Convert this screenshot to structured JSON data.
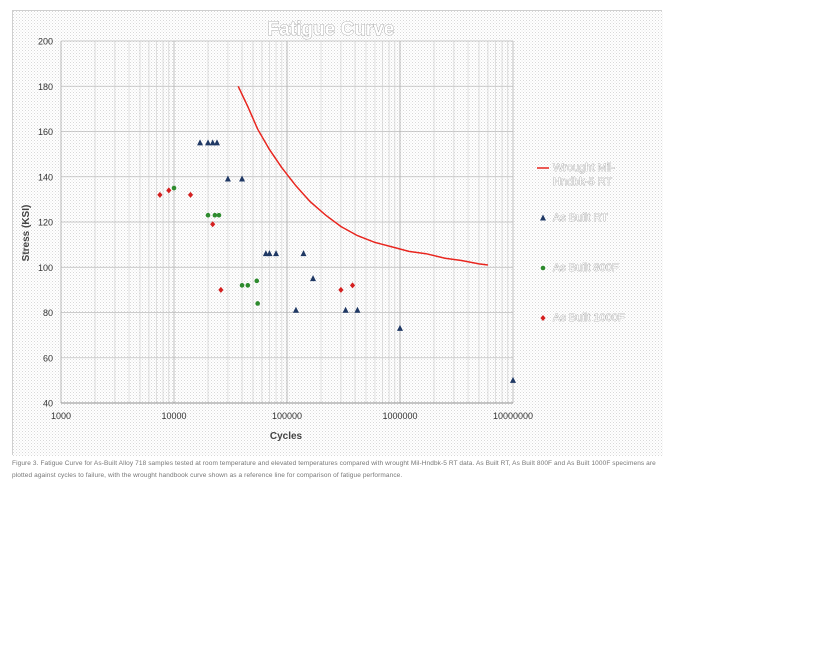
{
  "chart_data": {
    "type": "scatter",
    "title": "Fatigue Curve",
    "xlabel": "Cycles",
    "ylabel": "Stress (KSI)",
    "x_scale": "log",
    "xlim": [
      1000,
      10000000
    ],
    "ylim": [
      40,
      200
    ],
    "x_ticks": [
      "1000",
      "10000",
      "100000",
      "1000000",
      "10000000"
    ],
    "y_ticks": [
      "40",
      "60",
      "80",
      "100",
      "120",
      "140",
      "160",
      "180",
      "200"
    ],
    "grid": true,
    "legend_position": "right",
    "series": [
      {
        "name": "Wrought Mil-Hndbk-5 RT",
        "kind": "line",
        "color": "#e8261f",
        "points": [
          [
            37000,
            180
          ],
          [
            45000,
            171
          ],
          [
            55000,
            161
          ],
          [
            70000,
            152
          ],
          [
            90000,
            144
          ],
          [
            120000,
            136
          ],
          [
            160000,
            129
          ],
          [
            220000,
            123
          ],
          [
            300000,
            118
          ],
          [
            420000,
            114
          ],
          [
            600000,
            111
          ],
          [
            850000,
            109
          ],
          [
            1200000,
            107
          ],
          [
            1700000,
            106
          ],
          [
            2500000,
            104
          ],
          [
            3500000,
            103
          ],
          [
            5000000,
            101.5
          ],
          [
            6000000,
            101
          ]
        ]
      },
      {
        "name": "As Built RT",
        "kind": "marker",
        "marker": "triangle",
        "color": "#1f3864",
        "points": [
          [
            17000,
            155
          ],
          [
            20000,
            155
          ],
          [
            22000,
            155
          ],
          [
            24000,
            155
          ],
          [
            30000,
            139
          ],
          [
            40000,
            139
          ],
          [
            65000,
            106
          ],
          [
            70000,
            106
          ],
          [
            80000,
            106
          ],
          [
            140000,
            106
          ],
          [
            170000,
            95
          ],
          [
            120000,
            81
          ],
          [
            330000,
            81
          ],
          [
            420000,
            81
          ],
          [
            1000000,
            73
          ],
          [
            10000000,
            50
          ]
        ]
      },
      {
        "name": "As Built 800F",
        "kind": "marker",
        "marker": "circle",
        "color": "#2e8b2e",
        "points": [
          [
            10000,
            135
          ],
          [
            20000,
            123
          ],
          [
            23000,
            123
          ],
          [
            25000,
            123
          ],
          [
            40000,
            92
          ],
          [
            45000,
            92
          ],
          [
            54000,
            94
          ],
          [
            55000,
            84
          ]
        ]
      },
      {
        "name": "As Built 1000F",
        "kind": "marker",
        "marker": "diamond",
        "color": "#d42020",
        "points": [
          [
            7500,
            132
          ],
          [
            9000,
            134
          ],
          [
            14000,
            132
          ],
          [
            22000,
            119
          ],
          [
            26000,
            90
          ],
          [
            300000,
            90
          ],
          [
            380000,
            92
          ]
        ]
      }
    ]
  },
  "caption": {
    "text": "Figure 3. Fatigue Curve for As-Built Alloy 718 samples tested at room temperature and elevated temperatures compared with wrought Mil-Hndbk-5 RT data. As Built RT, As Built 800F and As Built 1000F specimens are plotted against cycles to failure, with the wrought handbook curve shown as a reference line for comparison of fatigue performance."
  }
}
